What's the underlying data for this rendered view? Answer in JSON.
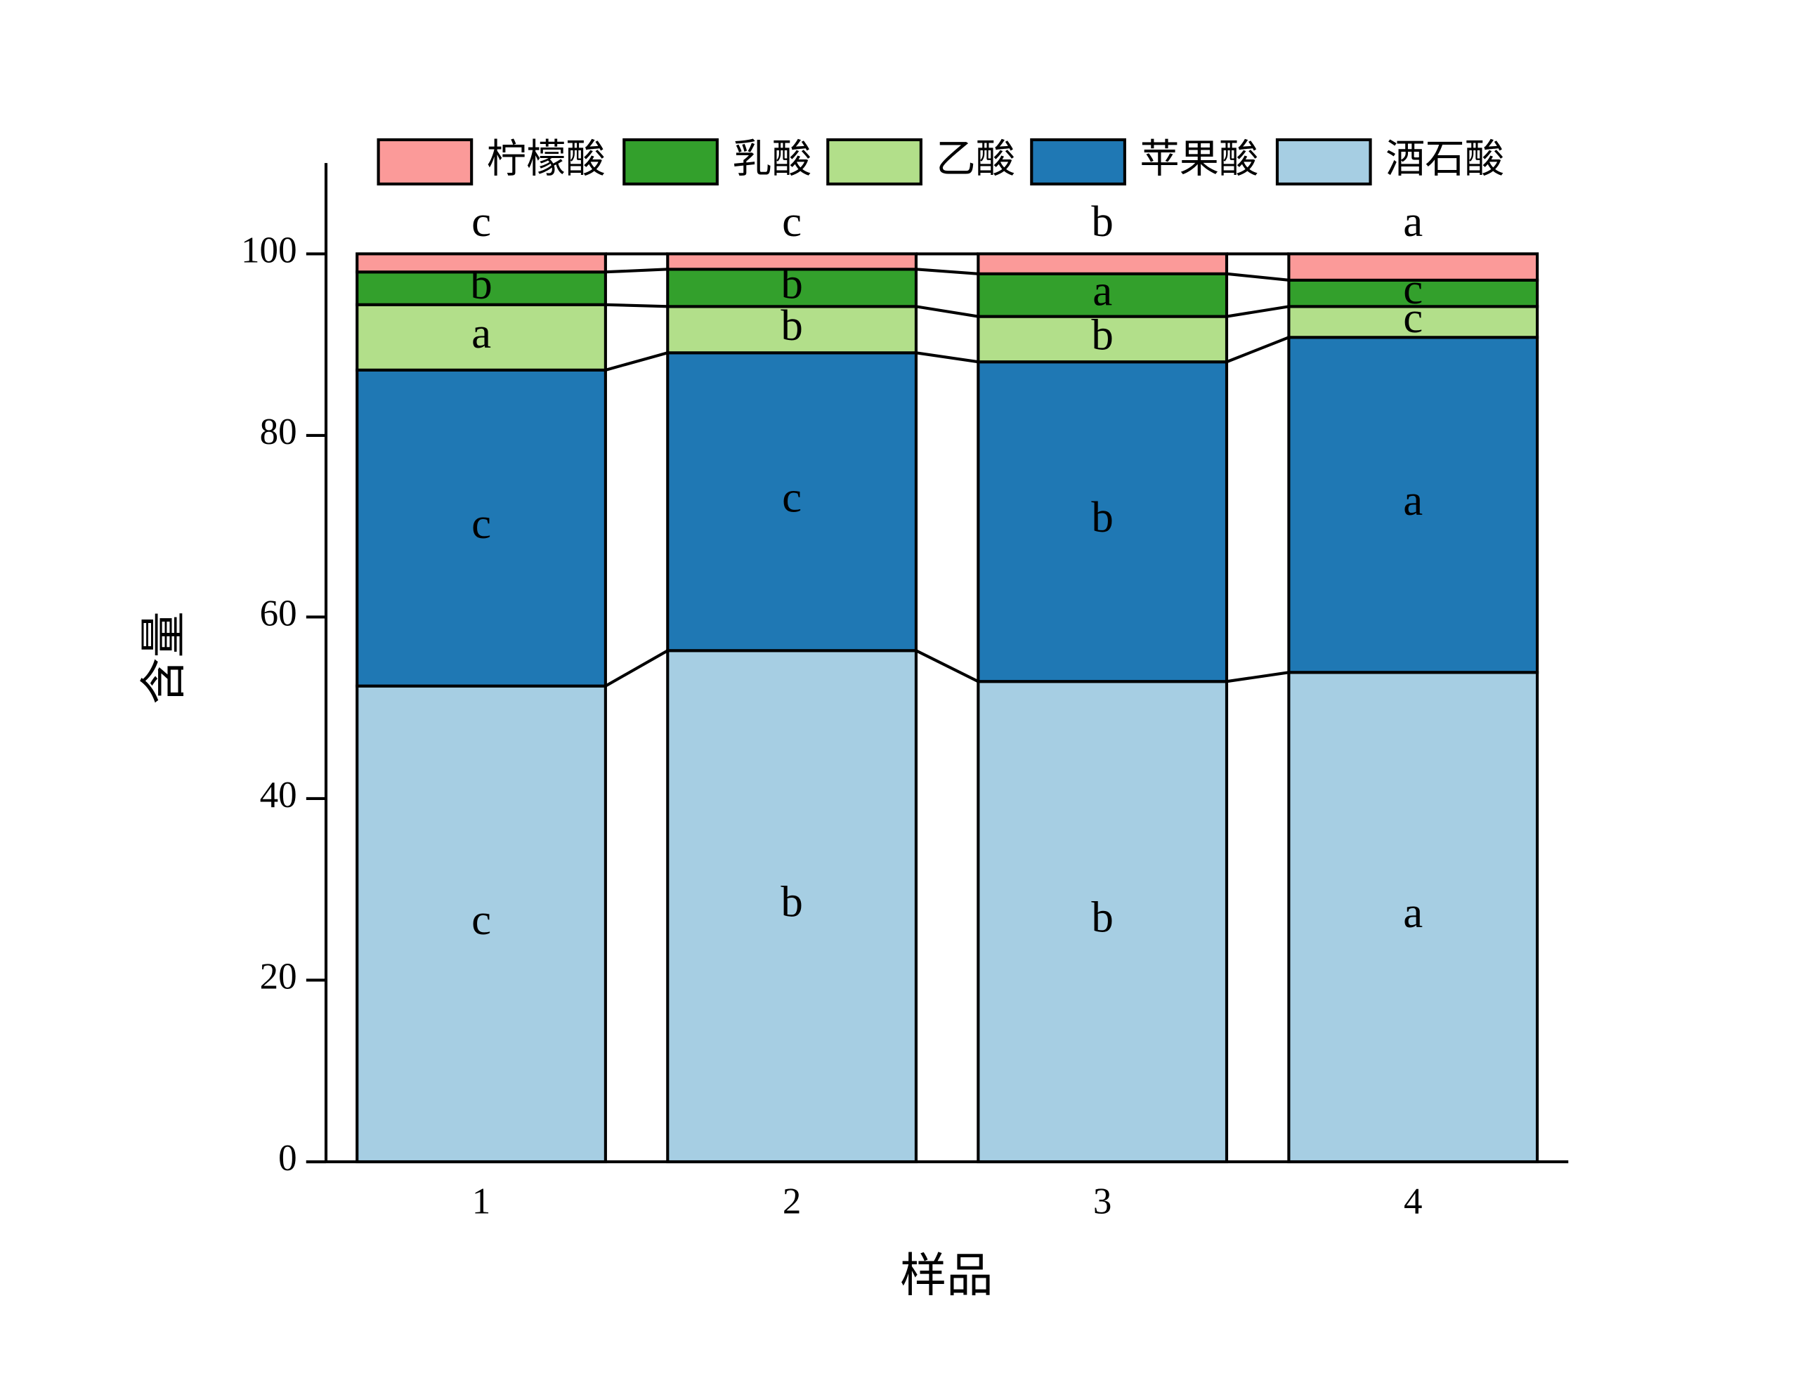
{
  "chart_data": {
    "type": "stacked-bar",
    "x_label": "样品",
    "y_label": "含量",
    "categories": [
      "1",
      "2",
      "3",
      "4"
    ],
    "series": [
      {
        "name": "酒石酸",
        "color": "#a6cee3",
        "values": [
          52.4,
          56.3,
          52.9,
          53.9
        ],
        "labels": [
          "c",
          "b",
          "b",
          "a"
        ]
      },
      {
        "name": "苹果酸",
        "color": "#1f78b4",
        "values": [
          34.8,
          32.8,
          35.2,
          36.9
        ],
        "labels": [
          "c",
          "c",
          "b",
          "a"
        ]
      },
      {
        "name": "乙酸",
        "color": "#b2df8a",
        "values": [
          7.2,
          5.1,
          5.0,
          3.4
        ],
        "labels": [
          "a",
          "b",
          "b",
          "c"
        ]
      },
      {
        "name": "乳酸",
        "color": "#33a02c",
        "values": [
          3.6,
          4.1,
          4.7,
          2.9
        ],
        "labels": [
          "b",
          "b",
          "a",
          "c"
        ]
      },
      {
        "name": "柠檬酸",
        "color": "#fb9a99",
        "values": [
          2.0,
          1.7,
          2.2,
          2.9
        ],
        "labels": [
          "c",
          "c",
          "b",
          "a"
        ]
      }
    ],
    "ylim": [
      0,
      110
    ],
    "yticks": [
      0,
      20,
      40,
      60,
      80,
      100
    ]
  }
}
